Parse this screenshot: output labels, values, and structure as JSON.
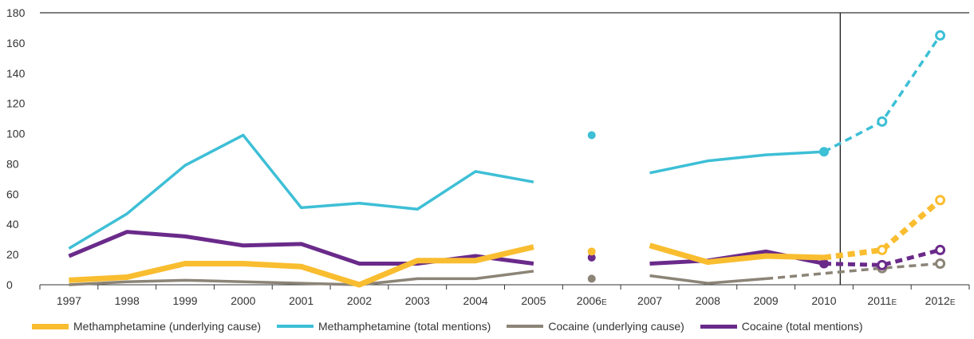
{
  "chart_data": {
    "type": "line",
    "categories": [
      "1997",
      "1998",
      "1999",
      "2000",
      "2001",
      "2002",
      "2003",
      "2004",
      "2005",
      "2006",
      "2007",
      "2008",
      "2009",
      "2010",
      "2011",
      "2012"
    ],
    "category_suffix": [
      "",
      "",
      "",
      "",
      "",
      "",
      "",
      "",
      "",
      "E",
      "",
      "",
      "",
      "",
      "E",
      "E"
    ],
    "ylim": [
      0,
      180
    ],
    "yticks": [
      0,
      20,
      40,
      60,
      80,
      100,
      120,
      140,
      160,
      180
    ],
    "series": [
      {
        "name": "Methamphetamine (underlying cause)",
        "color": "#f9bd30",
        "values": [
          3,
          5,
          14,
          14,
          12,
          0,
          16,
          16,
          25,
          22,
          26,
          15,
          19,
          18,
          23,
          56
        ],
        "estimated_from_index": 13
      },
      {
        "name": "Methamphetamine (total mentions)",
        "color": "#3dbfd6",
        "values": [
          24,
          47,
          79,
          99,
          51,
          54,
          50,
          75,
          68,
          99,
          74,
          82,
          86,
          88,
          108,
          165
        ],
        "estimated_from_index": 13
      },
      {
        "name": "Cocaine (underlying cause)",
        "color": "#8b8477",
        "values": [
          0,
          2,
          3,
          2,
          1,
          0,
          4,
          4,
          9,
          4,
          6,
          1,
          4,
          null,
          11,
          14
        ],
        "estimated_from_index": 13
      },
      {
        "name": "Cocaine (total mentions)",
        "color": "#6a2a8a",
        "values": [
          19,
          35,
          32,
          26,
          27,
          14,
          14,
          19,
          14,
          18,
          14,
          16,
          22,
          14,
          13,
          23
        ],
        "estimated_from_index": 13
      }
    ],
    "grid": false,
    "legend_position": "bottom"
  }
}
